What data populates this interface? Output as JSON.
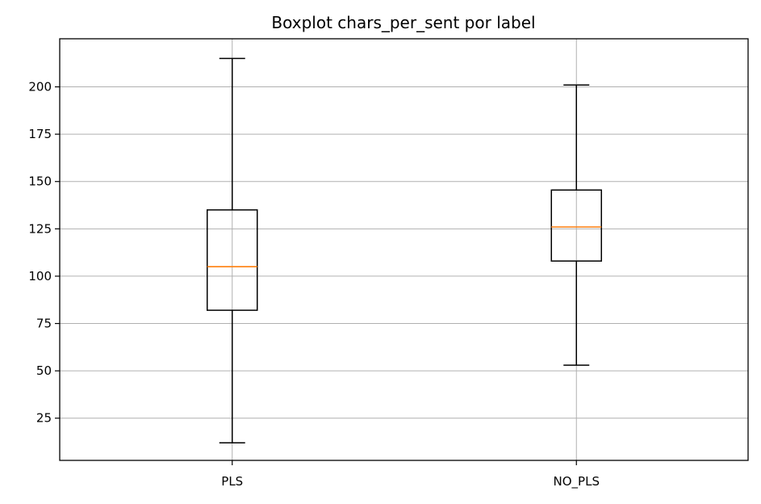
{
  "chart_data": {
    "type": "boxplot",
    "title": "Boxplot chars_per_sent por label",
    "xlabel": "",
    "ylabel": "",
    "categories": [
      "PLS",
      "NO_PLS"
    ],
    "boxes": [
      {
        "whisker_low": 12,
        "q1": 82,
        "median": 105,
        "q3": 135,
        "whisker_high": 215
      },
      {
        "whisker_low": 53,
        "q1": 108,
        "median": 126,
        "q3": 145.5,
        "whisker_high": 201
      }
    ],
    "ylim": [
      2.7,
      225.4
    ],
    "yticks": [
      25,
      50,
      75,
      100,
      125,
      150,
      175,
      200
    ],
    "grid": true,
    "colors": {
      "box": "#000000",
      "median": "#ff7f0e",
      "grid": "#b0b0b0"
    }
  }
}
